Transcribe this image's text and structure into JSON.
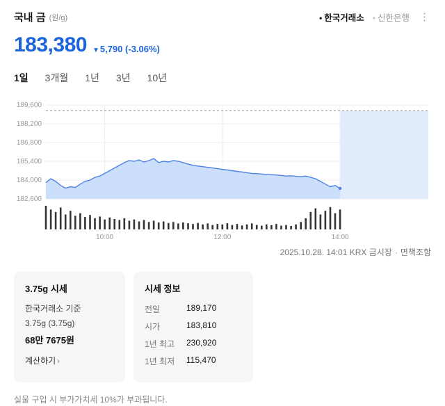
{
  "colors": {
    "down": "#1c64d9"
  },
  "header": {
    "title": "국내 금",
    "unit": "(원/g)",
    "bullet": "•",
    "more_icon": "⋮",
    "sources": [
      {
        "label": "한국거래소",
        "active": true
      },
      {
        "label": "신한은행",
        "active": false
      }
    ]
  },
  "price": {
    "value": "183,380",
    "direction_icon": "▼",
    "change": "5,790",
    "change_pct": "(-3.06%)"
  },
  "tabs": [
    {
      "label": "1일",
      "active": true
    },
    {
      "label": "3개월",
      "active": false
    },
    {
      "label": "1년",
      "active": false
    },
    {
      "label": "3년",
      "active": false
    },
    {
      "label": "10년",
      "active": false
    }
  ],
  "chart_data": {
    "type": "area",
    "x_start_min": 540,
    "x_step_min": 5,
    "x_end_min": 930,
    "ylim": [
      182600,
      189600
    ],
    "y_ticks": [
      189600,
      188200,
      186800,
      185400,
      184000,
      182600
    ],
    "y_tick_labels": [
      "189,600",
      "188,200",
      "186,800",
      "185,400",
      "184,000",
      "182,600"
    ],
    "x_ticks": [
      {
        "min": 600,
        "label": "10:00"
      },
      {
        "min": 720,
        "label": "12:00"
      },
      {
        "min": 840,
        "label": "14:00"
      }
    ],
    "prev_close": 189170,
    "grid": true,
    "line_color": "#4c82e6",
    "fill_color": "#cbdffa",
    "future_fill_color": "#e1ecfb",
    "volume_color": "#333333",
    "series": [
      {
        "name": "국내 금 가격(원/g)",
        "values": [
          183810,
          184100,
          183900,
          183600,
          183400,
          183500,
          183450,
          183700,
          183900,
          184000,
          184200,
          184300,
          184500,
          184700,
          184900,
          185100,
          185300,
          185450,
          185400,
          185500,
          185350,
          185450,
          185600,
          185300,
          185400,
          185350,
          185450,
          185400,
          185300,
          185200,
          185100,
          185050,
          185000,
          184950,
          184900,
          184850,
          184800,
          184750,
          184700,
          184650,
          184600,
          184550,
          184500,
          184480,
          184450,
          184420,
          184400,
          184380,
          184350,
          184300,
          184320,
          184280,
          184250,
          184300,
          184200,
          184100,
          183900,
          183700,
          183500,
          183600,
          183380
        ]
      }
    ],
    "volume": [
      95,
      80,
      70,
      88,
      60,
      75,
      55,
      65,
      50,
      58,
      45,
      52,
      40,
      48,
      42,
      38,
      45,
      35,
      40,
      32,
      38,
      30,
      35,
      28,
      32,
      26,
      30,
      24,
      28,
      25,
      22,
      26,
      20,
      24,
      18,
      22,
      20,
      25,
      18,
      22,
      16,
      20,
      24,
      18,
      15,
      20,
      17,
      22,
      15,
      18,
      14,
      20,
      30,
      45,
      70,
      85,
      60,
      75,
      90,
      65,
      80
    ]
  },
  "meta": {
    "text": "2025.10.28. 14:01 KRX 금시장",
    "sep": "·",
    "disclaimer": "면책조항"
  },
  "unit_card": {
    "title": "3.75g 시세",
    "line1": "한국거래소 기준",
    "line2": "3.75g (3.75g)",
    "price": "68만 7675원",
    "link": "계산하기",
    "link_arrow": "›"
  },
  "info_card": {
    "title": "시세 정보",
    "rows": [
      {
        "label": "전일",
        "value": "189,170"
      },
      {
        "label": "시가",
        "value": "183,810"
      },
      {
        "label": "1년 최고",
        "value": "230,920"
      },
      {
        "label": "1년 최저",
        "value": "115,470"
      }
    ]
  },
  "footer": {
    "notice": "실물 구입 시 부가가치세 10%가 부과됩니다."
  }
}
